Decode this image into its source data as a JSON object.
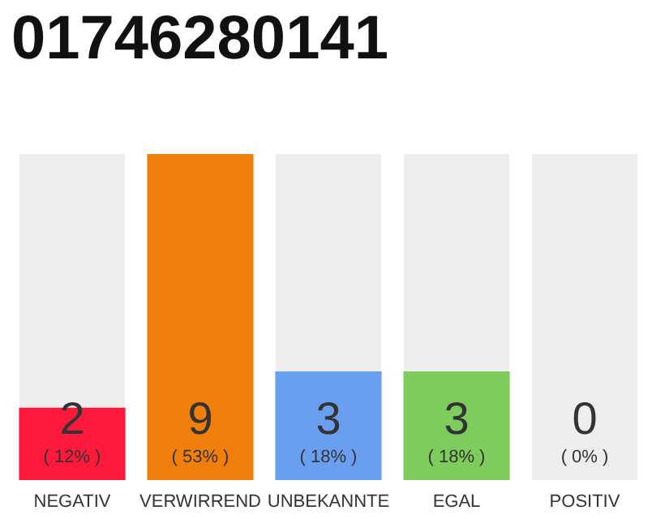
{
  "chart_data": {
    "type": "bar",
    "title": "01746280141",
    "categories": [
      "NEGATIV",
      "VERWIRREND",
      "UNBEKANNTE",
      "EGAL",
      "POSITIV"
    ],
    "values": [
      2,
      9,
      3,
      3,
      0
    ],
    "colors": [
      "#ff1a3c",
      "#f07e0a",
      "#6a9ff0",
      "#7dcc5c",
      "#999999"
    ],
    "value_labels": [
      "2\n( 12% )",
      "9\n( 53% )",
      "3\n( 18% )",
      "3\n( 18% )",
      "0\n( 0% )"
    ],
    "grid": false
  }
}
